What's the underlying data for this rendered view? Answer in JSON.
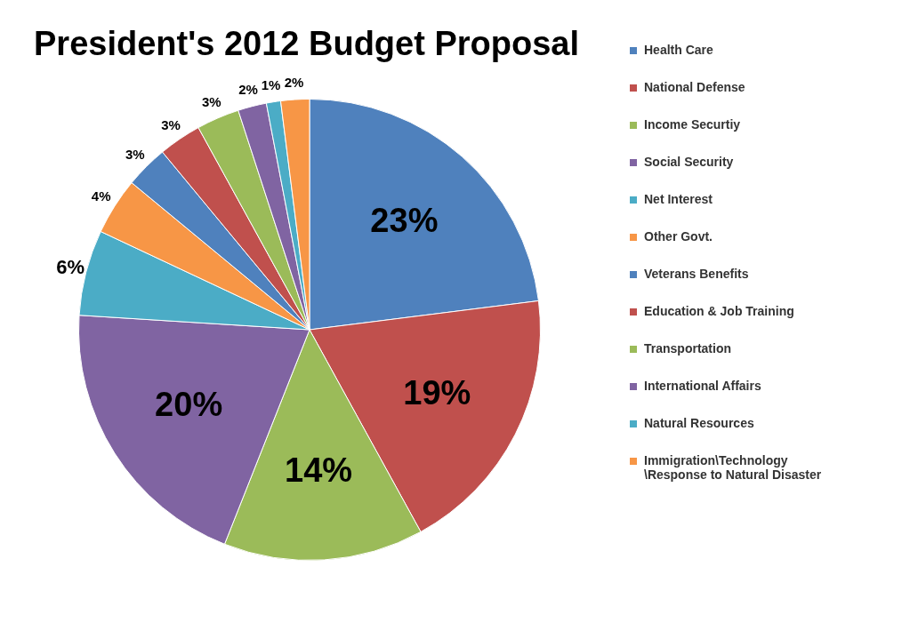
{
  "chart_data": {
    "type": "pie",
    "title": "President's 2012 Budget Proposal",
    "categories": [
      "Health Care",
      "National Defense",
      "Income Securtiy",
      "Social Security",
      "Net Interest",
      "Other Govt.",
      "Veterans Benefits",
      "Education & Job Training",
      "Transportation",
      "International Affairs",
      "Natural Resources",
      "Immigration\\Technology\\Response to Natural Disaster"
    ],
    "values": [
      23,
      19,
      14,
      20,
      6,
      4,
      3,
      3,
      3,
      2,
      1,
      2
    ],
    "colors": [
      "#4f81bd",
      "#c0504d",
      "#9bbb59",
      "#8064a2",
      "#4bacc6",
      "#f79646",
      "#4f81bd",
      "#c0504d",
      "#9bbb59",
      "#8064a2",
      "#4bacc6",
      "#f79646"
    ],
    "value_labels": [
      "23%",
      "19%",
      "14%",
      "20%",
      "6%",
      "4%",
      "3%",
      "3%",
      "3%",
      "2%",
      "1%",
      "2%"
    ],
    "legend": "right"
  }
}
